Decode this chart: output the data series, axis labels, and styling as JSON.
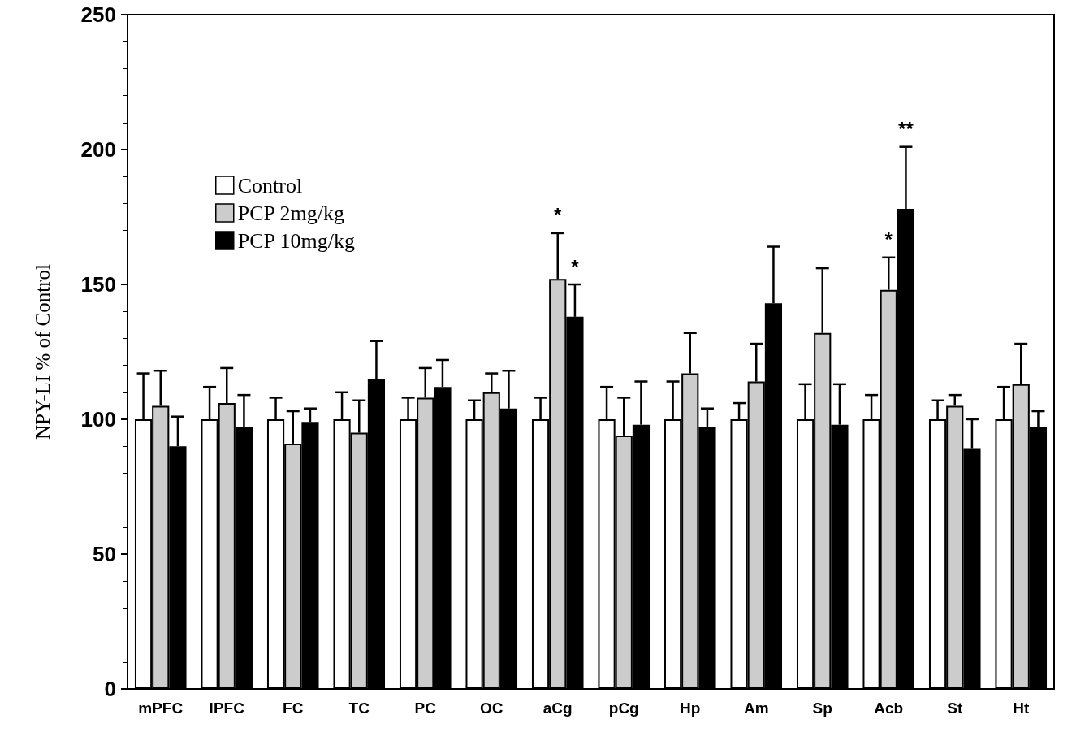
{
  "chart_data": {
    "type": "bar",
    "ylabel": "NPY-LI % of Control",
    "categories": [
      "mPFC",
      "lPFC",
      "FC",
      "TC",
      "PC",
      "OC",
      "aCg",
      "pCg",
      "Hp",
      "Am",
      "Sp",
      "Acb",
      "St",
      "Ht"
    ],
    "series": [
      {
        "name": "Control",
        "color": "#ffffff",
        "values": [
          100,
          100,
          100,
          100,
          100,
          100,
          100,
          100,
          100,
          100,
          100,
          100,
          100,
          100
        ],
        "errors": [
          [
            100,
            117
          ],
          [
            100,
            112
          ],
          [
            100,
            108
          ],
          [
            100,
            110
          ],
          [
            100,
            108
          ],
          [
            100,
            107
          ],
          [
            100,
            108
          ],
          [
            100,
            112
          ],
          [
            100,
            114
          ],
          [
            100,
            106
          ],
          [
            100,
            113
          ],
          [
            100,
            109
          ],
          [
            100,
            107
          ],
          [
            100,
            112
          ]
        ]
      },
      {
        "name": "PCP 2mg/kg",
        "color": "#cccccc",
        "values": [
          105,
          106,
          91,
          95,
          108,
          110,
          152,
          94,
          117,
          114,
          132,
          148,
          105,
          113
        ],
        "errors": [
          [
            105,
            118
          ],
          [
            106,
            119
          ],
          [
            91,
            103
          ],
          [
            95,
            107
          ],
          [
            108,
            119
          ],
          [
            110,
            117
          ],
          [
            152,
            169
          ],
          [
            94,
            108
          ],
          [
            117,
            132
          ],
          [
            114,
            128
          ],
          [
            132,
            156
          ],
          [
            148,
            160
          ],
          [
            105,
            109
          ],
          [
            113,
            128
          ]
        ]
      },
      {
        "name": "PCP 10mg/kg",
        "color": "#000000",
        "values": [
          90,
          97,
          99,
          115,
          112,
          104,
          138,
          98,
          97,
          143,
          98,
          178,
          89,
          97
        ],
        "errors": [
          [
            90,
            101
          ],
          [
            97,
            109
          ],
          [
            99,
            104
          ],
          [
            115,
            129
          ],
          [
            112,
            122
          ],
          [
            104,
            118
          ],
          [
            138,
            150
          ],
          [
            98,
            114
          ],
          [
            97,
            104
          ],
          [
            143,
            164
          ],
          [
            98,
            113
          ],
          [
            178,
            201
          ],
          [
            89,
            100
          ],
          [
            97,
            103
          ]
        ]
      }
    ],
    "ylim": [
      0,
      250
    ],
    "yticks": [
      0,
      50,
      100,
      150,
      200,
      250
    ],
    "grid": false,
    "legend": "top left",
    "annotations": [
      {
        "text": "*",
        "x": "aCg",
        "y": 169
      },
      {
        "text": "*",
        "x": "aCg",
        "y": 150
      },
      {
        "text": "*",
        "x": "Acb",
        "y": 160
      },
      "**"
    ]
  }
}
